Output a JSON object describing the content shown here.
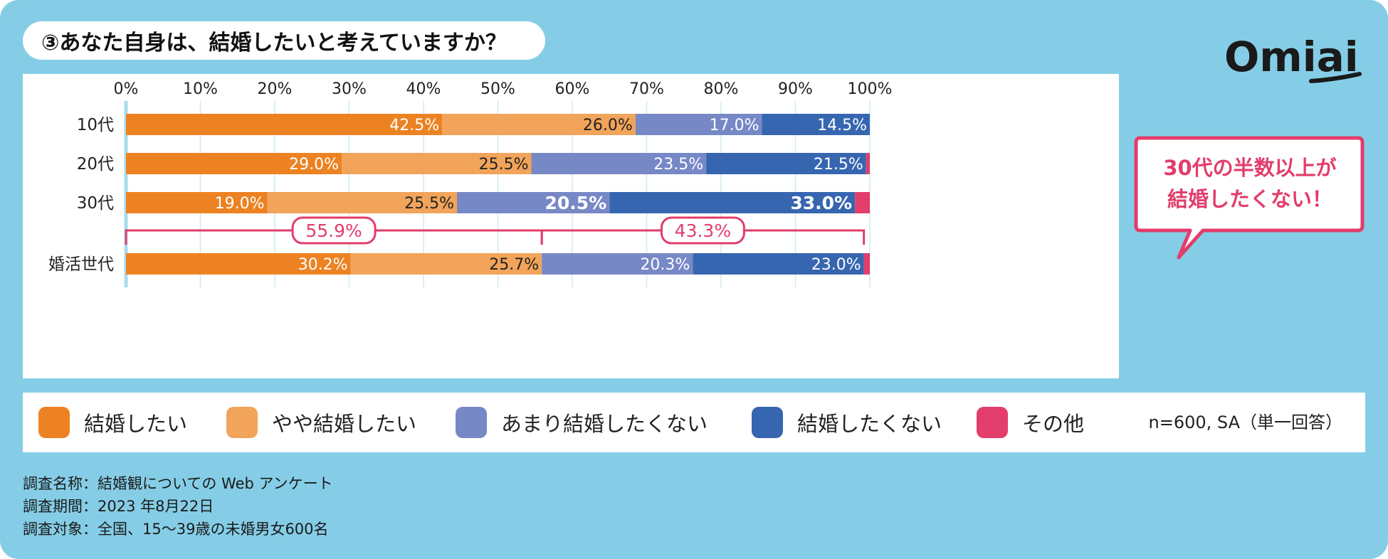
{
  "title": "③あなた自身は、結婚したいと考えていますか？",
  "brand": {
    "logo_text": "Omiai"
  },
  "callout": {
    "line1": "30代の半数以上が",
    "line2": "結婚したくない！"
  },
  "legend_note": "n=600, SA（単一回答）",
  "survey": {
    "line1": "調査名称：結婚観についての Web アンケート",
    "line2": "調査期間：2023 年8月22日",
    "line3": "調査対象：全国、15～39歳の未婚男女600名"
  },
  "colors": {
    "background": "#85cde6",
    "want": "#ec8222",
    "somewhat_want": "#f1a45a",
    "not_much": "#7788c6",
    "dont_want": "#3766b0",
    "other": "#e23d6b"
  },
  "chart_data": {
    "type": "bar",
    "orientation": "horizontal-stacked-100",
    "xlim": [
      0,
      100
    ],
    "x_ticks": [
      "0%",
      "10%",
      "20%",
      "30%",
      "40%",
      "50%",
      "60%",
      "70%",
      "80%",
      "90%",
      "100%"
    ],
    "categories": [
      "10代",
      "20代",
      "30代",
      "婚活世代"
    ],
    "series": [
      {
        "name": "結婚したい",
        "values": [
          42.5,
          29.0,
          19.0,
          30.2
        ],
        "labels": [
          "42.5%",
          "29.0%",
          "19.0%",
          "30.2%"
        ]
      },
      {
        "name": "やや結婚したい",
        "values": [
          26.0,
          25.5,
          25.5,
          25.7
        ],
        "labels": [
          "26.0%",
          "25.5%",
          "25.5%",
          "25.7%"
        ]
      },
      {
        "name": "あまり結婚したくない",
        "values": [
          17.0,
          23.5,
          20.5,
          20.3
        ],
        "labels": [
          "17.0%",
          "23.5%",
          "20.5%",
          "20.3%"
        ]
      },
      {
        "name": "結婚したくない",
        "values": [
          14.5,
          21.5,
          33.0,
          23.0
        ],
        "labels": [
          "14.5%",
          "21.5%",
          "33.0%",
          "23.0%"
        ]
      },
      {
        "name": "その他",
        "values": [
          0.0,
          0.5,
          2.0,
          0.8
        ],
        "labels": [
          "",
          "",
          "",
          ""
        ]
      }
    ],
    "emphasized_labels": [
      {
        "category": "30代",
        "series": [
          "あまり結婚したくない",
          "結婚したくない"
        ]
      }
    ],
    "brackets": [
      {
        "label": "55.9%",
        "from": 0,
        "to": 55.9
      },
      {
        "label": "43.3%",
        "from": 55.9,
        "to": 99.2
      }
    ],
    "legend_position": "bottom",
    "grid": true
  }
}
